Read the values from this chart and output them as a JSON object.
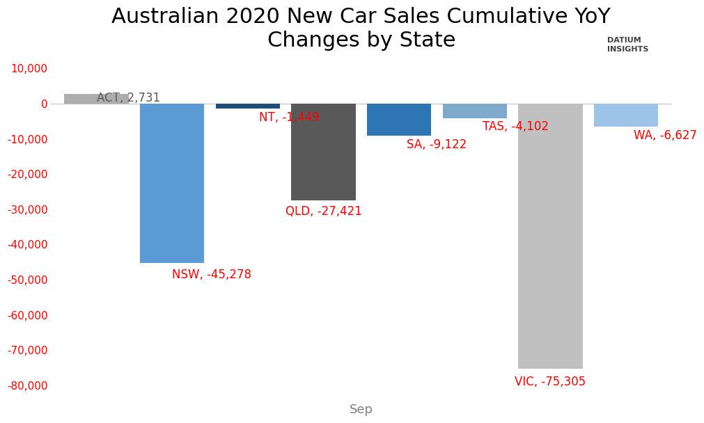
{
  "title_line1": "Australian 2020 New Car Sales Cumulative YoY",
  "title_line2": "Changes by State",
  "xlabel": "Sep",
  "states": [
    "ACT",
    "NSW",
    "NT",
    "QLD",
    "SA",
    "TAS",
    "VIC",
    "WA"
  ],
  "values": [
    2731,
    -45278,
    -1449,
    -27421,
    -9122,
    -4102,
    -75305,
    -6627
  ],
  "bar_colors": [
    "#ADADAD",
    "#5B9BD5",
    "#1F4E79",
    "#595959",
    "#2E75B6",
    "#7FAACC",
    "#C0C0C0",
    "#9DC3E6"
  ],
  "label_color_negative": "#FF0000",
  "label_color_act": "#595959",
  "ylim": [
    -83000,
    13000
  ],
  "yticks": [
    -80000,
    -70000,
    -60000,
    -50000,
    -40000,
    -30000,
    -20000,
    -10000,
    0,
    10000
  ],
  "background_color": "#FFFFFF",
  "title_fontsize": 22,
  "tick_fontsize": 11,
  "label_fontsize": 12,
  "bar_width": 0.85
}
